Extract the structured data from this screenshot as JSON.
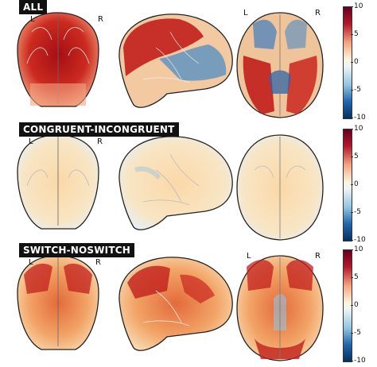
{
  "panels": [
    {
      "label": "ALL",
      "left": "L",
      "right": "R",
      "ticks": [
        "10",
        "5",
        "0",
        "-5",
        "-10"
      ]
    },
    {
      "label": "CONGRUENT-INCONGRUENT",
      "left": "L",
      "right": "R",
      "ticks": [
        "10",
        "5",
        "0",
        "-5",
        "-10"
      ]
    },
    {
      "label": "SWITCH-NOSWITCH",
      "left": "L",
      "right": "R",
      "ticks": [
        "10",
        "5",
        "0",
        "-5",
        "-10"
      ]
    }
  ],
  "colors": {
    "hot": "#b2182b",
    "warm": "#f4a582",
    "neutral": "#f7f7f7",
    "cool": "#92c5de",
    "cold": "#2166ac"
  }
}
